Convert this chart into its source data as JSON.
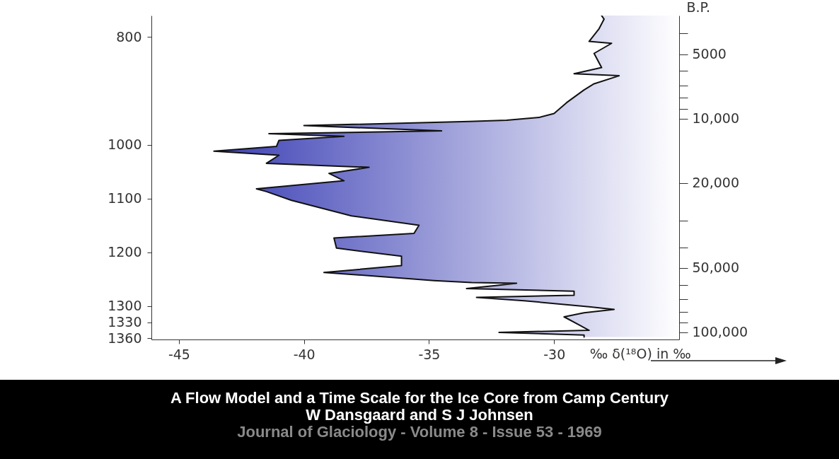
{
  "chart_data": {
    "type": "area",
    "orientation": "horizontal",
    "xlabel": "‰ δ(¹⁸O) in ‰",
    "ylabel": "B.P.",
    "xlim": [
      -46.1,
      -25
    ],
    "xticks": [
      -45,
      -40,
      -35,
      -30
    ],
    "ylim": [
      108000,
      3300
    ],
    "yticks": [
      {
        "value": 4000,
        "label": null
      },
      {
        "value": 5000,
        "label": "5000"
      },
      {
        "value": 6000,
        "label": null
      },
      {
        "value": 7000,
        "label": null
      },
      {
        "value": 8000,
        "label": null
      },
      {
        "value": 9000,
        "label": null
      },
      {
        "value": 10000,
        "label": "10,000"
      },
      {
        "value": 20000,
        "label": "20,000"
      },
      {
        "value": 30000,
        "label": null
      },
      {
        "value": 40000,
        "label": null
      },
      {
        "value": 50000,
        "label": "50,000"
      },
      {
        "value": 60000,
        "label": null
      },
      {
        "value": 70000,
        "label": null
      },
      {
        "value": 80000,
        "label": null
      },
      {
        "value": 90000,
        "label": null
      },
      {
        "value": 100000,
        "label": "100,000"
      }
    ],
    "y2lim": [
      1362,
      760
    ],
    "y2ticks": [
      800,
      1000,
      1100,
      1200,
      1300,
      1330,
      1360
    ],
    "log": "y",
    "series": [
      {
        "color": "#3c40b4",
        "x": [
          3300,
          3430,
          3800,
          4360,
          4450,
          4960,
          5780,
          6170,
          6310,
          6880,
          7350,
          8430,
          9470,
          9890,
          10180,
          10330,
          10790,
          11430,
          11770,
          12110,
          12650,
          13510,
          14210,
          14850,
          16200,
          16920,
          18060,
          19550,
          21330,
          21960,
          24140,
          28520,
          31570,
          34450,
          36230,
          40390,
          44070,
          48770,
          52450,
          57240,
          58500,
          58920,
          60200,
          62420,
          64250,
          67110,
          68600,
          71130,
          75920,
          78150,
          81030,
          84640,
          92330,
          97860,
          100000,
          102950,
          105230
        ],
        "values": [
          -28.1,
          -28.0,
          -28.2,
          -28.6,
          -27.7,
          -28.4,
          -28.1,
          -29.2,
          -27.4,
          -28.4,
          -28.8,
          -29.5,
          -30.0,
          -30.6,
          -31.9,
          -33.4,
          -40.0,
          -34.5,
          -41.4,
          -38.4,
          -41.0,
          -41.1,
          -43.6,
          -41.0,
          -41.5,
          -37.4,
          -39.0,
          -38.4,
          -41.9,
          -41.5,
          -40.5,
          -38.1,
          -35.4,
          -35.6,
          -38.8,
          -38.7,
          -36.1,
          -36.1,
          -39.2,
          -34.8,
          -33.3,
          -31.5,
          -32.2,
          -33.5,
          -29.2,
          -29.2,
          -33.1,
          -31.2,
          -28.6,
          -27.6,
          -28.8,
          -29.6,
          -29.0,
          -28.6,
          -32.2,
          -28.8,
          -28.8
        ]
      }
    ],
    "annotations": [
      "A Flow Model and a Time Scale for the Ice Core from Camp Century",
      "W Dansgaard and S J Johnsen",
      "Journal of Glaciology - Volume 8 - Issue 53 - 1969"
    ]
  }
}
